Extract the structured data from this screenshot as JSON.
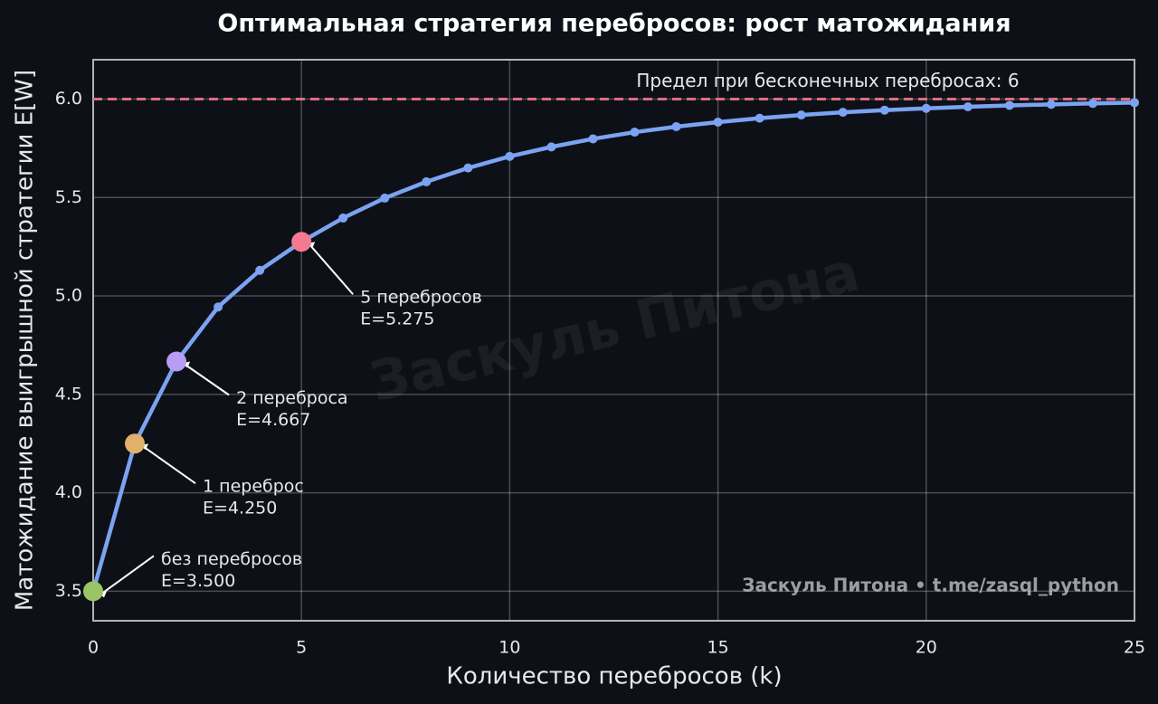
{
  "chart_data": {
    "type": "line",
    "title": "Оптимальная стратегия перебросов: рост матожидания",
    "x_label": "Количество перебросов (k)",
    "y_label": "Матожидание выигрышной стратегии  E[W]",
    "x": [
      0,
      1,
      2,
      3,
      4,
      5,
      6,
      7,
      8,
      9,
      10,
      11,
      12,
      13,
      14,
      15,
      16,
      17,
      18,
      19,
      20,
      21,
      22,
      23,
      24,
      25
    ],
    "series": [
      {
        "name": "E[W]",
        "color": "#7ba3f2",
        "values": [
          3.5,
          4.25,
          4.667,
          4.944,
          5.13,
          5.275,
          5.396,
          5.497,
          5.58,
          5.65,
          5.709,
          5.757,
          5.798,
          5.832,
          5.86,
          5.883,
          5.903,
          5.919,
          5.933,
          5.944,
          5.953,
          5.961,
          5.968,
          5.973,
          5.978,
          5.982
        ]
      }
    ],
    "xlim": [
      0,
      25
    ],
    "xticks": [
      0,
      5,
      10,
      15,
      20,
      25
    ],
    "ylim": [
      3.35,
      6.2
    ],
    "yticks": [
      {
        "value": 3.5,
        "label": "3.5"
      },
      {
        "value": 4,
        "label": "4.0"
      },
      {
        "value": 4.5,
        "label": "4.5"
      },
      {
        "value": 5,
        "label": "5.0"
      },
      {
        "value": 5.5,
        "label": "5.5"
      },
      {
        "value": 6,
        "label": "6.0"
      }
    ],
    "grid": true,
    "reference_line": {
      "y": 6,
      "label": "Предел при бесконечных перебросах: 6",
      "color": "#e06c80"
    },
    "annotations": [
      {
        "x": 0,
        "y": 3.5,
        "lines": [
          "без перебросов",
          "E=3.500"
        ],
        "color": "#9bc565"
      },
      {
        "x": 1,
        "y": 4.25,
        "lines": [
          "1 переброс",
          "E=4.250"
        ],
        "color": "#e2b06a"
      },
      {
        "x": 2,
        "y": 4.667,
        "lines": [
          "2 переброса",
          "E=4.667"
        ],
        "color": "#b99cf3"
      },
      {
        "x": 5,
        "y": 5.275,
        "lines": [
          "5 перебросов",
          "E=5.275"
        ],
        "color": "#f47a92"
      }
    ],
    "watermark": "Заскуль Питона",
    "credit": "Заскуль Питона • t.me/zasql_python"
  }
}
